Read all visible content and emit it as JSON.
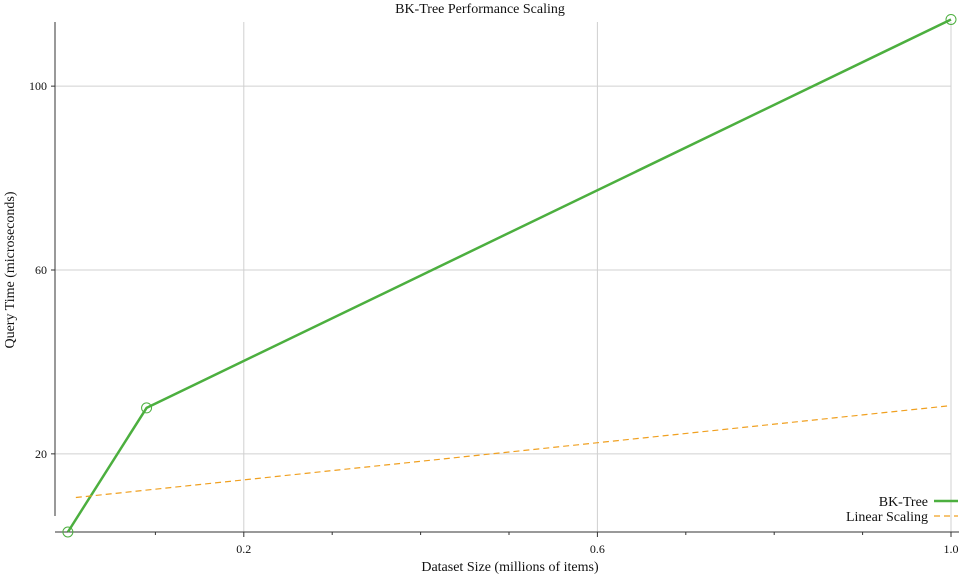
{
  "chart_data": {
    "type": "line",
    "title": "BK-Tree Performance Scaling",
    "xlabel": "Dataset Size (millions of items)",
    "ylabel": "Query Time (microseconds)",
    "xlim": [
      0.0,
      1.0
    ],
    "ylim": [
      3,
      117
    ],
    "x_ticks": [
      {
        "value": 0.2,
        "label": "0.2"
      },
      {
        "value": 0.6,
        "label": "0.6"
      },
      {
        "value": 1.0,
        "label": "1.0"
      }
    ],
    "x_minor_ticks": [
      0.1,
      0.3,
      0.4,
      0.5,
      0.7,
      0.8,
      0.9
    ],
    "y_ticks": [
      {
        "value": 20,
        "label": "20"
      },
      {
        "value": 60,
        "label": "60"
      },
      {
        "value": 100,
        "label": "100"
      }
    ],
    "x_grid": [
      0.2,
      0.6,
      1.0
    ],
    "y_grid": [
      20,
      60,
      100
    ],
    "grid": true,
    "legend_position": "bottom-right",
    "series": [
      {
        "name": "BK-Tree",
        "color": "#4caf3f",
        "style": "solid",
        "marker": "circle",
        "x": [
          0.001,
          0.09,
          1.0
        ],
        "y": [
          3,
          30,
          114.5
        ]
      },
      {
        "name": "Linear Scaling",
        "color": "#f0a020",
        "style": "dashed",
        "marker": "none",
        "x": [
          0.01,
          1.0
        ],
        "y": [
          10.5,
          30.5
        ]
      }
    ]
  }
}
